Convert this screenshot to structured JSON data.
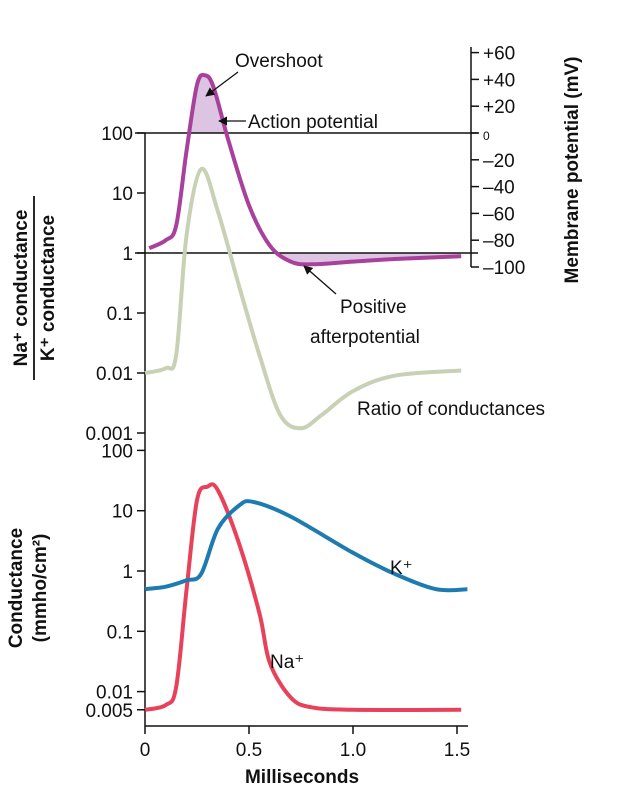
{
  "chart_data": [
    {
      "type": "line",
      "panel": "top",
      "left_axis": {
        "label_numerator": "Na⁺ conductance",
        "label_denominator": "K⁺ conductance",
        "scale": "log",
        "ylim": [
          0.001,
          100
        ],
        "ticks": [
          100,
          10,
          1,
          0.1,
          0.01,
          0.001
        ],
        "tick_labels": [
          "100",
          "10",
          "1",
          "0.1",
          "0.01",
          "0.001"
        ]
      },
      "right_axis": {
        "label": "Membrane potential (mV)",
        "scale": "linear",
        "ylim": [
          -100,
          60
        ],
        "ticks": [
          60,
          40,
          20,
          0,
          -20,
          -40,
          -60,
          -80,
          -100
        ],
        "tick_labels": [
          "+60",
          "+40",
          "+20",
          "0",
          "–20",
          "–40",
          "–60",
          "–80",
          "–100"
        ]
      },
      "xlim": [
        0,
        1.55
      ],
      "series": [
        {
          "name": "Action potential",
          "axis": "right",
          "color": "#a8419c",
          "x": [
            0.02,
            0.1,
            0.15,
            0.2,
            0.25,
            0.29,
            0.33,
            0.4,
            0.5,
            0.6,
            0.7,
            0.8,
            1.0,
            1.2,
            1.52
          ],
          "y": [
            -86,
            -80,
            -69,
            -13,
            36,
            43,
            34,
            -5,
            -54,
            -84,
            -96,
            -98,
            -96,
            -94,
            -92
          ]
        },
        {
          "name": "Ratio of conductances",
          "axis": "left",
          "color": "#c8d1b4",
          "x": [
            0,
            0.1,
            0.15,
            0.2,
            0.27,
            0.35,
            0.45,
            0.55,
            0.65,
            0.75,
            0.85,
            1.0,
            1.2,
            1.52
          ],
          "y": [
            0.01,
            0.012,
            0.02,
            2,
            25,
            5,
            0.3,
            0.02,
            0.002,
            0.0012,
            0.002,
            0.005,
            0.009,
            0.011
          ]
        }
      ],
      "annotations": {
        "overshoot": "Overshoot",
        "action_potential": "Action potential",
        "positive_afterpotential_1": "Positive",
        "positive_afterpotential_2": "afterpotential",
        "ratio": "Ratio of conductances"
      },
      "fill_color": "#dcc4e2"
    },
    {
      "type": "line",
      "panel": "bottom",
      "ylabel_1": "Conductance",
      "ylabel_2": "(mmho/cm²)",
      "xlabel": "Milliseconds",
      "scale": "log",
      "ylim": [
        0.005,
        100
      ],
      "yticks": [
        100,
        10,
        1,
        0.1,
        0.01,
        0.005
      ],
      "ytick_labels": [
        "100",
        "10",
        "1",
        "0.1",
        "0.01",
        "0.005"
      ],
      "xlim": [
        0,
        1.55
      ],
      "xticks": [
        0,
        0.5,
        1.0,
        1.5
      ],
      "xtick_labels": [
        "0",
        "0.5",
        "1.0",
        "1.5"
      ],
      "series": [
        {
          "name": "Na⁺",
          "color": "#e8415a",
          "x": [
            0,
            0.1,
            0.15,
            0.2,
            0.25,
            0.3,
            0.35,
            0.45,
            0.55,
            0.6,
            0.7,
            0.8,
            1.0,
            1.52
          ],
          "y": [
            0.005,
            0.006,
            0.012,
            0.5,
            15,
            25,
            22,
            3,
            0.2,
            0.03,
            0.008,
            0.0055,
            0.005,
            0.005
          ]
        },
        {
          "name": "K⁺",
          "color": "#1e7bb0",
          "x": [
            0,
            0.1,
            0.2,
            0.27,
            0.35,
            0.45,
            0.52,
            0.7,
            1.0,
            1.2,
            1.4,
            1.55
          ],
          "y": [
            0.5,
            0.55,
            0.7,
            0.9,
            5,
            12,
            14,
            8,
            2,
            0.9,
            0.5,
            0.5
          ]
        }
      ]
    }
  ]
}
